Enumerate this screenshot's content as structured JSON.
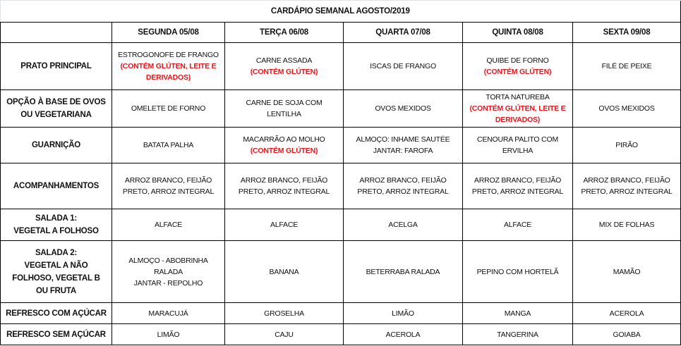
{
  "title": "CARDÁPIO SEMANAL AGOSTO/2019",
  "days": [
    "SEGUNDA 05/08",
    "TERÇA 06/08",
    "QUARTA 07/08",
    "QUINTA 08/08",
    "SEXTA 09/08"
  ],
  "rows": [
    {
      "label": [
        "PRATO PRINCIPAL"
      ],
      "cells": [
        {
          "lines": [
            "ESTROGONOFE DE FRANGO"
          ],
          "allergen": [
            "(CONTÉM GLÚTEN, LEITE E",
            "DERIVADOS)"
          ]
        },
        {
          "lines": [
            "CARNE ASSADA"
          ],
          "allergen": [
            "(CONTÉM GLÚTEN)"
          ]
        },
        {
          "lines": [
            "ISCAS DE FRANGO"
          ],
          "allergen": []
        },
        {
          "lines": [
            "QUIBE DE FORNO"
          ],
          "allergen": [
            "(CONTÉM GLÚTEN)"
          ]
        },
        {
          "lines": [
            "FILÉ DE PEIXE"
          ],
          "allergen": []
        }
      ]
    },
    {
      "label": [
        "OPÇÃO À BASE DE OVOS",
        "OU VEGETARIANA"
      ],
      "cells": [
        {
          "lines": [
            "OMELETE DE FORNO"
          ],
          "allergen": []
        },
        {
          "lines": [
            "CARNE DE SOJA COM",
            "LENTILHA"
          ],
          "allergen": []
        },
        {
          "lines": [
            "OVOS MEXIDOS"
          ],
          "allergen": []
        },
        {
          "lines": [
            "TORTA NATUREBA"
          ],
          "allergen": [
            "(CONTÉM GLÚTEN, LEITE E",
            "DERIVADOS)"
          ]
        },
        {
          "lines": [
            "OVOS MEXIDOS"
          ],
          "allergen": []
        }
      ]
    },
    {
      "label": [
        "GUARNIÇÃO"
      ],
      "cells": [
        {
          "lines": [
            "BATATA PALHA"
          ],
          "allergen": []
        },
        {
          "lines": [
            "MACARRÃO AO MOLHO"
          ],
          "allergen": [
            "(CONTÉM GLÚTEN)"
          ]
        },
        {
          "lines": [
            "ALMOÇO: INHAME SAUTÉE",
            "JANTAR: FAROFA"
          ],
          "allergen": []
        },
        {
          "lines": [
            "CENOURA PALITO COM",
            "ERVILHA"
          ],
          "allergen": []
        },
        {
          "lines": [
            "PIRÃO"
          ],
          "allergen": []
        }
      ]
    },
    {
      "label": [
        "ACOMPANHAMENTOS"
      ],
      "cells": [
        {
          "lines": [
            "ARROZ BRANCO, FEIJÃO",
            "PRETO, ARROZ INTEGRAL"
          ],
          "allergen": []
        },
        {
          "lines": [
            "ARROZ BRANCO, FEIJÃO",
            "PRETO, ARROZ INTEGRAL"
          ],
          "allergen": []
        },
        {
          "lines": [
            "ARROZ BRANCO, FEIJÃO",
            "PRETO, ARROZ INTEGRAL"
          ],
          "allergen": []
        },
        {
          "lines": [
            "ARROZ BRANCO, FEIJÃO",
            "PRETO, ARROZ INTEGRAL"
          ],
          "allergen": []
        },
        {
          "lines": [
            "ARROZ BRANCO, FEIJÃO",
            "PRETO, ARROZ INTEGRAL"
          ],
          "allergen": []
        }
      ]
    },
    {
      "label": [
        "SALADA 1:",
        "VEGETAL A FOLHOSO"
      ],
      "cells": [
        {
          "lines": [
            "ALFACE"
          ],
          "allergen": []
        },
        {
          "lines": [
            "ALFACE"
          ],
          "allergen": []
        },
        {
          "lines": [
            "ACELGA"
          ],
          "allergen": []
        },
        {
          "lines": [
            "ALFACE"
          ],
          "allergen": []
        },
        {
          "lines": [
            "MIX DE FOLHAS"
          ],
          "allergen": []
        }
      ]
    },
    {
      "label": [
        "SALADA 2:",
        "VEGETAL A NÃO",
        "FOLHOSO, VEGETAL B",
        "OU FRUTA"
      ],
      "cells": [
        {
          "lines": [
            "ALMOÇO - ABOBRINHA",
            "RALADA",
            "JANTAR - REPOLHO"
          ],
          "allergen": []
        },
        {
          "lines": [
            "BANANA"
          ],
          "allergen": []
        },
        {
          "lines": [
            "BETERRABA RALADA"
          ],
          "allergen": []
        },
        {
          "lines": [
            "PEPINO COM HORTELÃ"
          ],
          "allergen": []
        },
        {
          "lines": [
            "MAMÃO"
          ],
          "allergen": []
        }
      ]
    },
    {
      "label": [
        "REFRESCO COM AÇÚCAR"
      ],
      "cells": [
        {
          "lines": [
            "MARACUJÁ"
          ],
          "allergen": []
        },
        {
          "lines": [
            "GROSELHA"
          ],
          "allergen": []
        },
        {
          "lines": [
            "LIMÃO"
          ],
          "allergen": []
        },
        {
          "lines": [
            "MANGA"
          ],
          "allergen": []
        },
        {
          "lines": [
            "ACEROLA"
          ],
          "allergen": []
        }
      ]
    },
    {
      "label": [
        "REFRESCO SEM AÇÚCAR"
      ],
      "cells": [
        {
          "lines": [
            "LIMÃO"
          ],
          "allergen": []
        },
        {
          "lines": [
            "CAJU"
          ],
          "allergen": []
        },
        {
          "lines": [
            "ACEROLA"
          ],
          "allergen": []
        },
        {
          "lines": [
            "TANGERINA"
          ],
          "allergen": []
        },
        {
          "lines": [
            "GOIABA"
          ],
          "allergen": []
        }
      ]
    }
  ],
  "colors": {
    "allergen": "#e8141c",
    "border": "#000000"
  }
}
